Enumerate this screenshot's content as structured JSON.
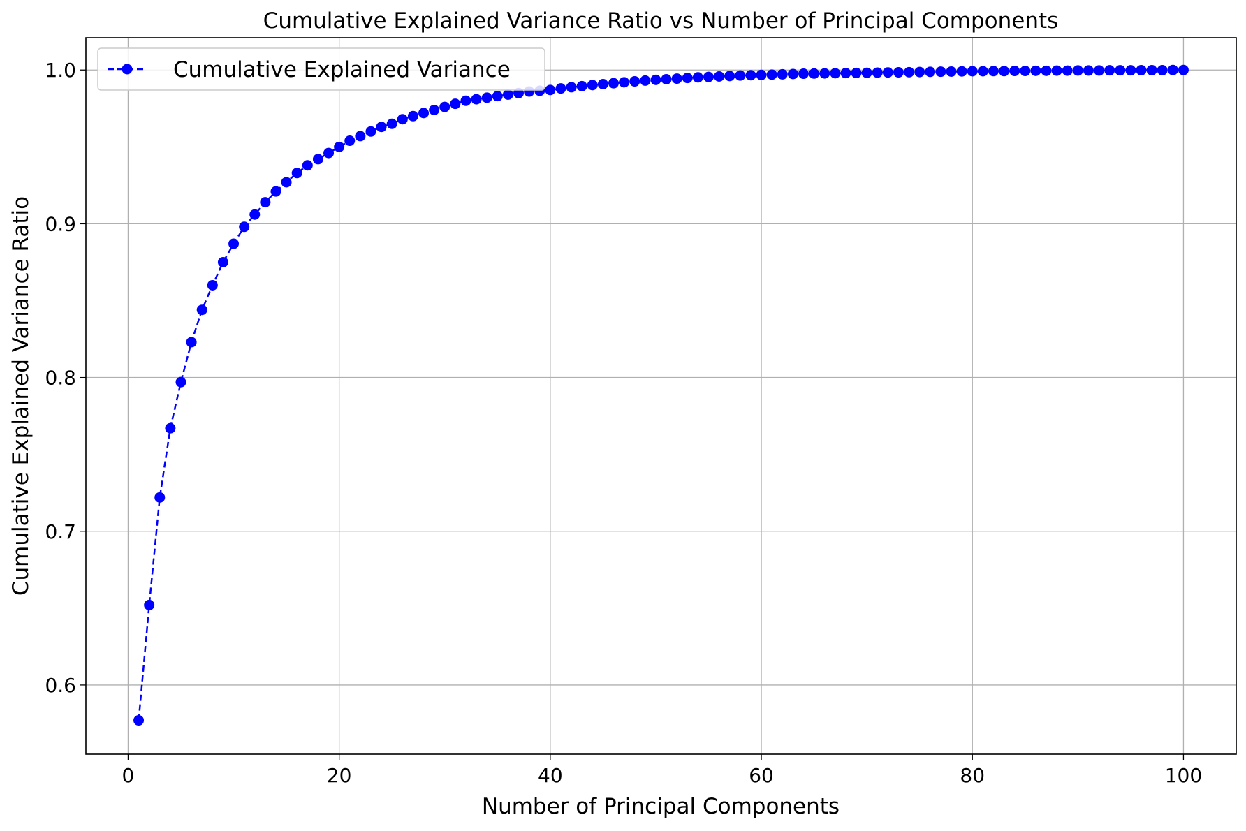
{
  "chart_data": {
    "type": "line",
    "title": "Cumulative Explained Variance Ratio vs Number of Principal Components",
    "xlabel": "Number of Principal Components",
    "ylabel": "Cumulative Explained Variance Ratio",
    "xlim": [
      -4,
      105
    ],
    "ylim": [
      0.555,
      1.021
    ],
    "xticks": [
      0,
      20,
      40,
      60,
      80,
      100
    ],
    "xtick_labels": [
      "0",
      "20",
      "40",
      "60",
      "80",
      "100"
    ],
    "yticks": [
      0.6,
      0.7,
      0.8,
      0.9,
      1.0
    ],
    "ytick_labels": [
      "0.6",
      "0.7",
      "0.8",
      "0.9",
      "1.0"
    ],
    "grid": true,
    "legend_position": "upper-left",
    "colors": {
      "series": "#0000ff",
      "grid": "#b0b0b0",
      "axes": "#000000"
    },
    "series": [
      {
        "name": "Cumulative Explained Variance",
        "line_style": "dashed",
        "marker": "circle",
        "x": [
          1,
          2,
          3,
          4,
          5,
          6,
          7,
          8,
          9,
          10,
          11,
          12,
          13,
          14,
          15,
          16,
          17,
          18,
          19,
          20,
          21,
          22,
          23,
          24,
          25,
          26,
          27,
          28,
          29,
          30,
          31,
          32,
          33,
          34,
          35,
          36,
          37,
          38,
          39,
          40,
          41,
          42,
          43,
          44,
          45,
          46,
          47,
          48,
          49,
          50,
          51,
          52,
          53,
          54,
          55,
          56,
          57,
          58,
          59,
          60,
          61,
          62,
          63,
          64,
          65,
          66,
          67,
          68,
          69,
          70,
          71,
          72,
          73,
          74,
          75,
          76,
          77,
          78,
          79,
          80,
          81,
          82,
          83,
          84,
          85,
          86,
          87,
          88,
          89,
          90,
          91,
          92,
          93,
          94,
          95,
          96,
          97,
          98,
          99,
          100
        ],
        "y": [
          0.577,
          0.652,
          0.722,
          0.767,
          0.797,
          0.823,
          0.844,
          0.86,
          0.875,
          0.887,
          0.898,
          0.906,
          0.914,
          0.921,
          0.927,
          0.933,
          0.938,
          0.942,
          0.946,
          0.95,
          0.954,
          0.957,
          0.96,
          0.963,
          0.965,
          0.968,
          0.97,
          0.972,
          0.974,
          0.976,
          0.978,
          0.98,
          0.981,
          0.982,
          0.983,
          0.984,
          0.985,
          0.986,
          0.9865,
          0.987,
          0.988,
          0.9888,
          0.9895,
          0.9902,
          0.9908,
          0.9914,
          0.992,
          0.9926,
          0.9931,
          0.9936,
          0.994,
          0.9944,
          0.9948,
          0.9952,
          0.9955,
          0.9958,
          0.9961,
          0.9964,
          0.9966,
          0.9968,
          0.997,
          0.9972,
          0.9974,
          0.9976,
          0.9977,
          0.9978,
          0.9979,
          0.998,
          0.9981,
          0.9982,
          0.9983,
          0.9984,
          0.9985,
          0.9986,
          0.9987,
          0.9988,
          0.9989,
          0.999,
          0.9991,
          0.9992,
          0.9992,
          0.9993,
          0.9993,
          0.9994,
          0.9994,
          0.9995,
          0.9995,
          0.9996,
          0.9996,
          0.9997,
          0.9997,
          0.9997,
          0.9998,
          0.9998,
          0.9998,
          0.9999,
          0.9999,
          0.9999,
          1.0,
          1.0
        ]
      }
    ]
  }
}
